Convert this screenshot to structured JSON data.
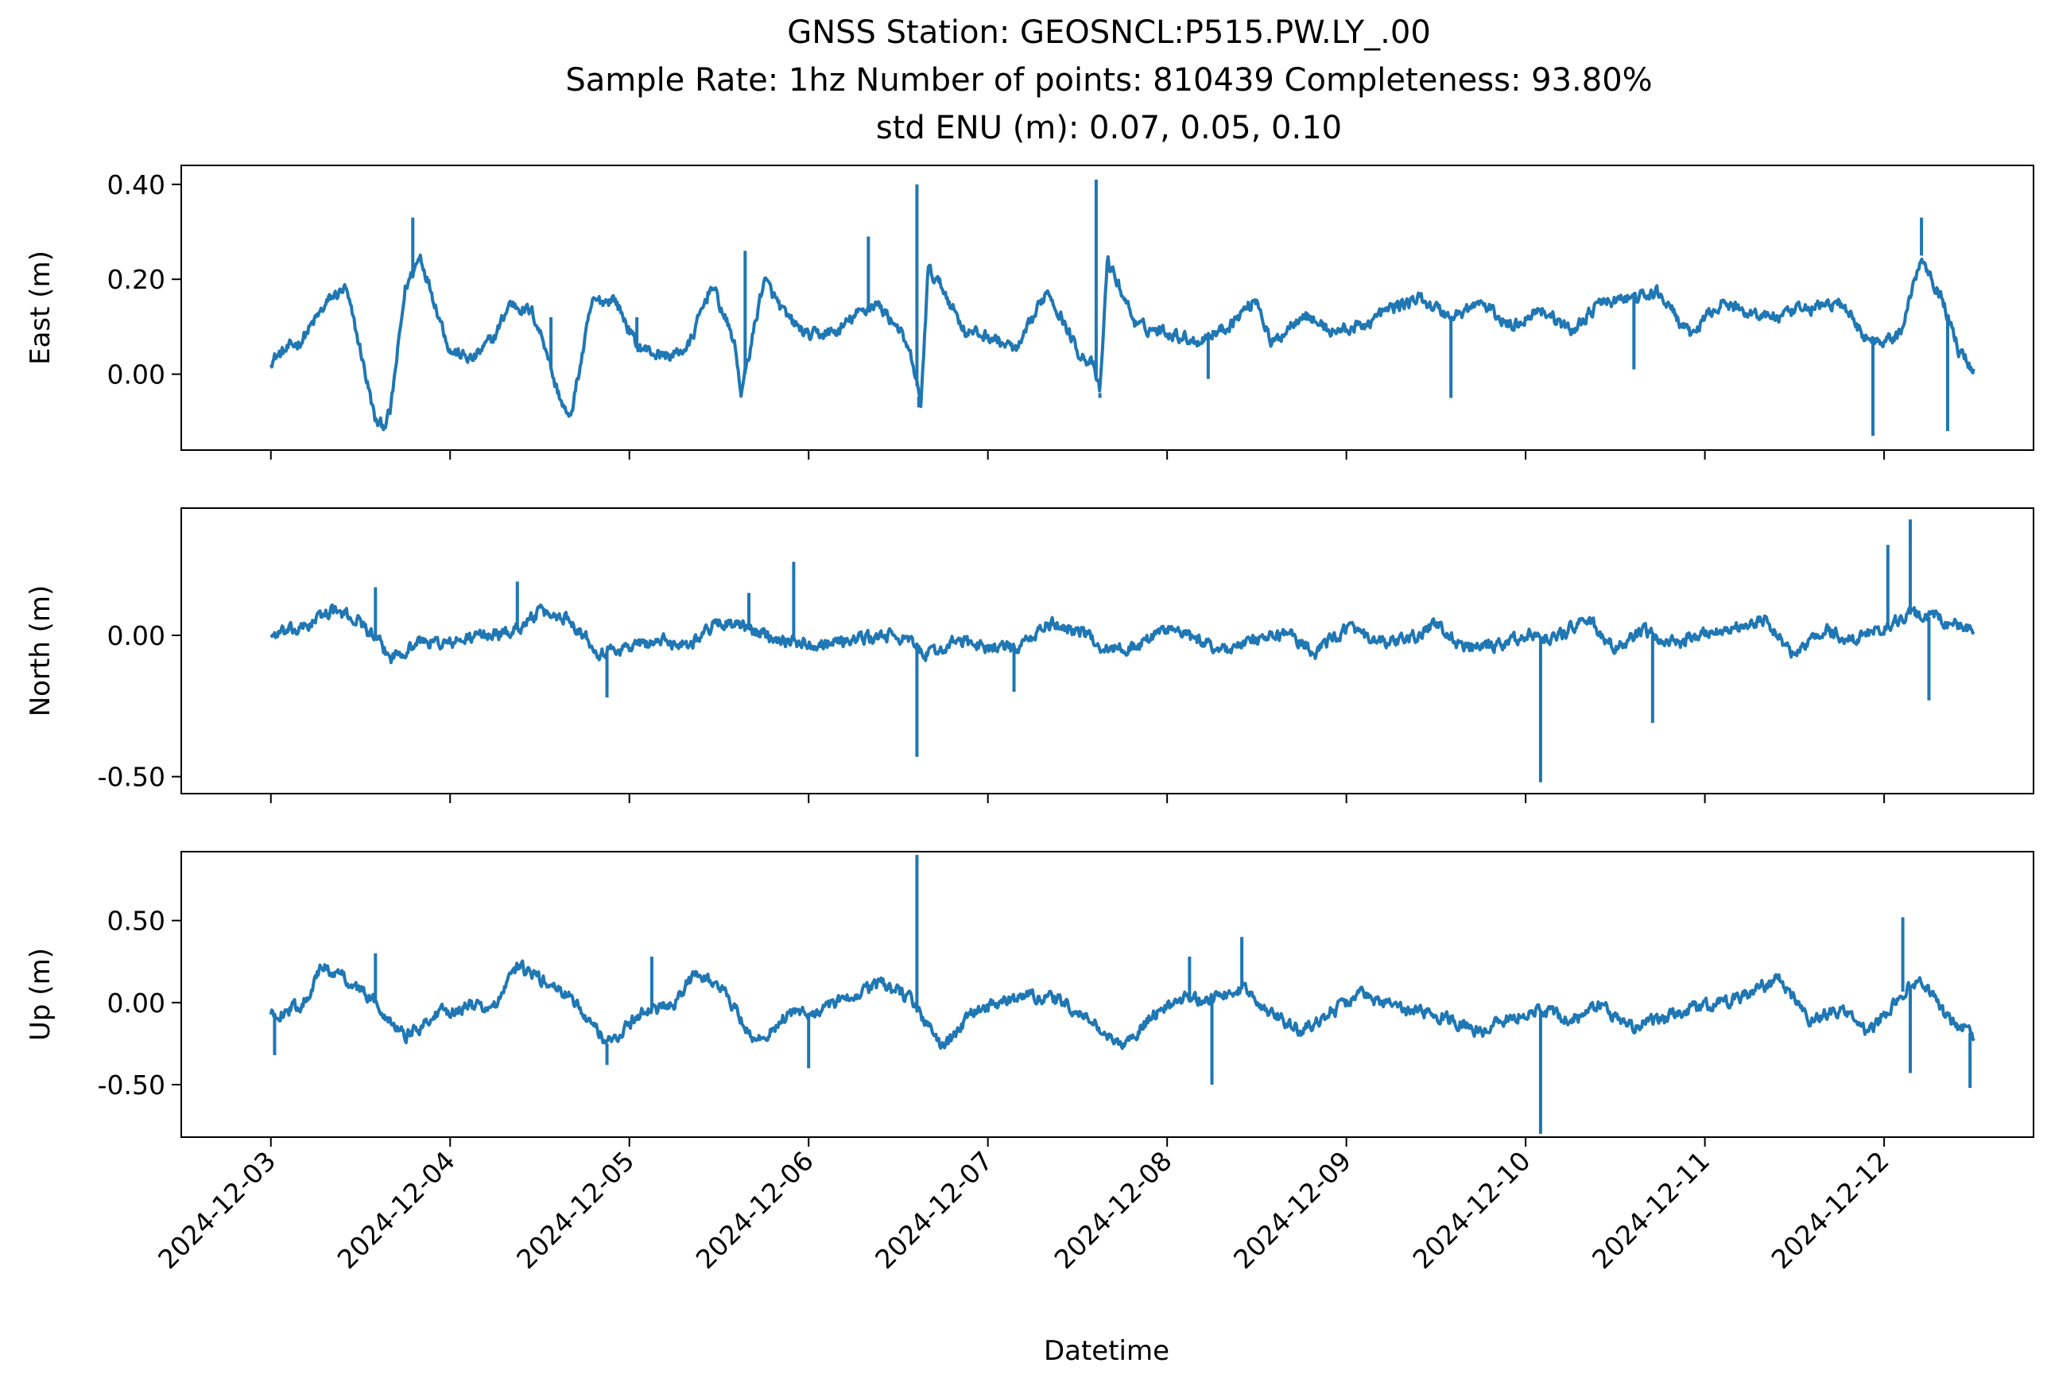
{
  "chart_data": {
    "type": "line",
    "title_lines": [
      "GNSS Station: GEOSNCL:P515.PW.LY_.00",
      "Sample Rate: 1hz   Number of points: 810439    Completeness:  93.80%",
      "std ENU (m):  0.07, 0.05, 0.10"
    ],
    "xlabel": "Datetime",
    "xlim": [
      "2024-12-02 12:00",
      "2024-12-12 20:00"
    ],
    "x_ticks": [
      "2024-12-03",
      "2024-12-04",
      "2024-12-05",
      "2024-12-06",
      "2024-12-07",
      "2024-12-08",
      "2024-12-09",
      "2024-12-10",
      "2024-12-11",
      "2024-12-12"
    ],
    "series_color": "#1f77b4",
    "grid": false,
    "panels": [
      {
        "ylabel": "East (m)",
        "ylim": [
          -0.16,
          0.44
        ],
        "y_ticks": [
          0.4,
          0.2,
          0.0
        ],
        "y_tick_labels": [
          "0.40",
          "0.20",
          "0.00"
        ],
        "x": [
          "2024-12-03 00:00",
          "2024-12-03 04:00",
          "2024-12-03 08:00",
          "2024-12-03 10:00",
          "2024-12-03 12:00",
          "2024-12-03 14:00",
          "2024-12-03 15:00",
          "2024-12-03 16:00",
          "2024-12-03 18:00",
          "2024-12-03 20:00",
          "2024-12-03 22:00",
          "2024-12-04 00:00",
          "2024-12-04 03:00",
          "2024-12-04 06:00",
          "2024-12-04 08:00",
          "2024-12-04 11:00",
          "2024-12-04 13:00",
          "2024-12-04 14:00",
          "2024-12-04 16:00",
          "2024-12-04 19:00",
          "2024-12-04 22:00",
          "2024-12-05 01:00",
          "2024-12-05 04:00",
          "2024-12-05 06:00",
          "2024-12-05 08:00",
          "2024-12-05 11:00",
          "2024-12-05 14:00",
          "2024-12-05 15:00",
          "2024-12-05 18:00",
          "2024-12-05 21:00",
          "2024-12-06 00:00",
          "2024-12-06 04:00",
          "2024-12-06 06:00",
          "2024-12-06 09:00",
          "2024-12-06 12:00",
          "2024-12-06 14:00",
          "2024-12-06 15:00",
          "2024-12-06 16:00",
          "2024-12-06 18:00",
          "2024-12-06 21:00",
          "2024-12-07 00:00",
          "2024-12-07 04:00",
          "2024-12-07 08:00",
          "2024-12-07 12:00",
          "2024-12-07 14:00",
          "2024-12-07 15:00",
          "2024-12-07 16:00",
          "2024-12-07 20:00",
          "2024-12-08 00:00",
          "2024-12-08 04:00",
          "2024-12-08 08:00",
          "2024-12-08 12:00",
          "2024-12-08 14:00",
          "2024-12-08 18:00",
          "2024-12-08 22:00",
          "2024-12-09 02:00",
          "2024-12-09 06:00",
          "2024-12-09 10:00",
          "2024-12-09 14:00",
          "2024-12-09 18:00",
          "2024-12-09 22:00",
          "2024-12-10 02:00",
          "2024-12-10 06:00",
          "2024-12-10 10:00",
          "2024-12-10 14:00",
          "2024-12-10 18:00",
          "2024-12-10 22:00",
          "2024-12-11 02:00",
          "2024-12-11 06:00",
          "2024-12-11 10:00",
          "2024-12-11 14:00",
          "2024-12-11 18:00",
          "2024-12-11 22:00",
          "2024-12-12 02:00",
          "2024-12-12 05:00",
          "2024-12-12 08:00",
          "2024-12-12 10:00",
          "2024-12-12 12:00"
        ],
        "y": [
          0.03,
          0.07,
          0.16,
          0.18,
          0.05,
          -0.1,
          -0.11,
          -0.08,
          0.18,
          0.25,
          0.15,
          0.05,
          0.03,
          0.08,
          0.15,
          0.13,
          0.05,
          -0.02,
          -0.1,
          0.15,
          0.16,
          0.06,
          0.04,
          0.04,
          0.06,
          0.19,
          0.07,
          -0.04,
          0.2,
          0.12,
          0.08,
          0.09,
          0.12,
          0.15,
          0.1,
          0.02,
          -0.07,
          0.22,
          0.18,
          0.09,
          0.08,
          0.05,
          0.18,
          0.05,
          0.02,
          -0.04,
          0.24,
          0.1,
          0.09,
          0.07,
          0.1,
          0.16,
          0.06,
          0.13,
          0.09,
          0.1,
          0.14,
          0.16,
          0.12,
          0.15,
          0.1,
          0.14,
          0.09,
          0.15,
          0.16,
          0.17,
          0.08,
          0.15,
          0.13,
          0.12,
          0.14,
          0.15,
          0.07,
          0.08,
          0.25,
          0.15,
          0.05,
          0.01
        ],
        "spikes": [
          [
            "2024-12-03 19:00",
            0.33
          ],
          [
            "2024-12-04 13:30",
            0.12
          ],
          [
            "2024-12-05 01:00",
            0.12
          ],
          [
            "2024-12-05 15:30",
            0.26
          ],
          [
            "2024-12-06 08:00",
            0.29
          ],
          [
            "2024-12-06 14:30",
            0.4
          ],
          [
            "2024-12-06 14:45",
            -0.07
          ],
          [
            "2024-12-07 14:30",
            0.41
          ],
          [
            "2024-12-07 15:00",
            -0.05
          ],
          [
            "2024-12-08 05:30",
            -0.01
          ],
          [
            "2024-12-09 14:00",
            -0.05
          ],
          [
            "2024-12-10 14:30",
            0.01
          ],
          [
            "2024-12-11 22:30",
            -0.13
          ],
          [
            "2024-12-12 05:00",
            0.33
          ],
          [
            "2024-12-12 08:30",
            -0.12
          ]
        ]
      },
      {
        "ylabel": "North (m)",
        "ylim": [
          -0.56,
          0.45
        ],
        "y_ticks": [
          0.0,
          -0.5
        ],
        "y_tick_labels": [
          "0.00",
          "-0.50"
        ],
        "x": [
          "2024-12-03 00:00",
          "2024-12-03 04:00",
          "2024-12-03 08:00",
          "2024-12-03 12:00",
          "2024-12-03 16:00",
          "2024-12-03 20:00",
          "2024-12-04 00:00",
          "2024-12-04 04:00",
          "2024-12-04 08:00",
          "2024-12-04 12:00",
          "2024-12-04 16:00",
          "2024-12-04 20:00",
          "2024-12-05 00:00",
          "2024-12-05 04:00",
          "2024-12-05 08:00",
          "2024-12-05 12:00",
          "2024-12-05 16:00",
          "2024-12-05 20:00",
          "2024-12-06 00:00",
          "2024-12-06 04:00",
          "2024-12-06 08:00",
          "2024-12-06 12:00",
          "2024-12-06 16:00",
          "2024-12-06 20:00",
          "2024-12-07 00:00",
          "2024-12-07 04:00",
          "2024-12-07 08:00",
          "2024-12-07 12:00",
          "2024-12-07 16:00",
          "2024-12-07 20:00",
          "2024-12-08 00:00",
          "2024-12-08 04:00",
          "2024-12-08 08:00",
          "2024-12-08 12:00",
          "2024-12-08 16:00",
          "2024-12-08 20:00",
          "2024-12-09 00:00",
          "2024-12-09 04:00",
          "2024-12-09 08:00",
          "2024-12-09 12:00",
          "2024-12-09 16:00",
          "2024-12-09 20:00",
          "2024-12-10 00:00",
          "2024-12-10 04:00",
          "2024-12-10 08:00",
          "2024-12-10 12:00",
          "2024-12-10 16:00",
          "2024-12-10 20:00",
          "2024-12-11 00:00",
          "2024-12-11 04:00",
          "2024-12-11 08:00",
          "2024-12-11 12:00",
          "2024-12-11 16:00",
          "2024-12-11 20:00",
          "2024-12-12 00:00",
          "2024-12-12 04:00",
          "2024-12-12 08:00",
          "2024-12-12 12:00"
        ],
        "y": [
          0.0,
          0.02,
          0.09,
          0.05,
          -0.08,
          -0.02,
          -0.03,
          0.0,
          0.01,
          0.08,
          0.06,
          -0.06,
          -0.04,
          -0.02,
          -0.03,
          0.05,
          0.02,
          -0.01,
          -0.03,
          -0.02,
          -0.01,
          0.0,
          -0.07,
          -0.02,
          -0.04,
          -0.05,
          0.04,
          0.02,
          -0.05,
          -0.04,
          0.03,
          -0.02,
          -0.05,
          -0.02,
          0.01,
          -0.06,
          0.03,
          -0.03,
          -0.02,
          0.04,
          -0.05,
          -0.04,
          0.0,
          -0.01,
          0.06,
          -0.05,
          0.01,
          -0.03,
          0.01,
          0.03,
          0.05,
          -0.07,
          0.02,
          -0.02,
          0.03,
          0.08,
          0.05,
          0.02
        ],
        "spikes": [
          [
            "2024-12-03 14:00",
            0.17
          ],
          [
            "2024-12-04 09:00",
            0.19
          ],
          [
            "2024-12-04 21:00",
            -0.22
          ],
          [
            "2024-12-05 16:00",
            0.15
          ],
          [
            "2024-12-05 22:00",
            0.26
          ],
          [
            "2024-12-06 14:30",
            -0.43
          ],
          [
            "2024-12-07 03:30",
            -0.2
          ],
          [
            "2024-12-10 02:00",
            -0.52
          ],
          [
            "2024-12-10 17:00",
            -0.31
          ],
          [
            "2024-12-12 00:30",
            0.32
          ],
          [
            "2024-12-12 03:30",
            0.41
          ],
          [
            "2024-12-12 06:00",
            -0.23
          ]
        ]
      },
      {
        "ylabel": "Up (m)",
        "ylim": [
          -0.82,
          0.92
        ],
        "y_ticks": [
          0.5,
          0.0,
          -0.5
        ],
        "y_tick_labels": [
          "0.50",
          "0.00",
          "-0.50"
        ],
        "x": [
          "2024-12-03 00:00",
          "2024-12-03 04:00",
          "2024-12-03 07:00",
          "2024-12-03 10:00",
          "2024-12-03 14:00",
          "2024-12-03 18:00",
          "2024-12-03 22:00",
          "2024-12-04 02:00",
          "2024-12-04 06:00",
          "2024-12-04 09:00",
          "2024-12-04 13:00",
          "2024-12-04 17:00",
          "2024-12-04 21:00",
          "2024-12-05 02:00",
          "2024-12-05 06:00",
          "2024-12-05 09:00",
          "2024-12-05 13:00",
          "2024-12-05 17:00",
          "2024-12-05 21:00",
          "2024-12-06 02:00",
          "2024-12-06 06:00",
          "2024-12-06 10:00",
          "2024-12-06 14:00",
          "2024-12-06 18:00",
          "2024-12-06 22:00",
          "2024-12-07 02:00",
          "2024-12-07 06:00",
          "2024-12-07 10:00",
          "2024-12-07 14:00",
          "2024-12-07 18:00",
          "2024-12-07 22:00",
          "2024-12-08 02:00",
          "2024-12-08 06:00",
          "2024-12-08 10:00",
          "2024-12-08 14:00",
          "2024-12-08 18:00",
          "2024-12-08 22:00",
          "2024-12-09 02:00",
          "2024-12-09 06:00",
          "2024-12-09 10:00",
          "2024-12-09 14:00",
          "2024-12-09 18:00",
          "2024-12-09 22:00",
          "2024-12-10 02:00",
          "2024-12-10 06:00",
          "2024-12-10 10:00",
          "2024-12-10 14:00",
          "2024-12-10 18:00",
          "2024-12-10 22:00",
          "2024-12-11 02:00",
          "2024-12-11 06:00",
          "2024-12-11 10:00",
          "2024-12-11 14:00",
          "2024-12-11 18:00",
          "2024-12-11 22:00",
          "2024-12-12 02:00",
          "2024-12-12 05:00",
          "2024-12-12 08:00",
          "2024-12-12 12:00"
        ],
        "y": [
          -0.08,
          -0.02,
          0.22,
          0.15,
          0.0,
          -0.2,
          -0.08,
          -0.02,
          -0.03,
          0.22,
          0.12,
          0.0,
          -0.25,
          -0.05,
          -0.02,
          0.2,
          0.05,
          -0.25,
          -0.08,
          -0.05,
          0.05,
          0.12,
          0.0,
          -0.28,
          -0.06,
          0.0,
          0.05,
          0.0,
          -0.12,
          -0.28,
          -0.08,
          0.02,
          0.03,
          0.08,
          -0.05,
          -0.18,
          -0.05,
          0.05,
          -0.02,
          -0.05,
          -0.1,
          -0.18,
          -0.08,
          -0.05,
          -0.1,
          -0.02,
          -0.15,
          -0.1,
          -0.05,
          0.0,
          0.05,
          0.15,
          -0.1,
          -0.05,
          -0.18,
          0.05,
          0.15,
          -0.08,
          -0.2
        ],
        "spikes": [
          [
            "2024-12-03 00:30",
            -0.32
          ],
          [
            "2024-12-03 14:00",
            0.3
          ],
          [
            "2024-12-04 21:00",
            -0.38
          ],
          [
            "2024-12-05 03:00",
            0.28
          ],
          [
            "2024-12-06 00:00",
            -0.4
          ],
          [
            "2024-12-06 14:30",
            0.9
          ],
          [
            "2024-12-08 03:00",
            0.28
          ],
          [
            "2024-12-08 06:00",
            -0.5
          ],
          [
            "2024-12-08 10:00",
            0.4
          ],
          [
            "2024-12-10 02:00",
            -0.8
          ],
          [
            "2024-12-12 02:30",
            0.52
          ],
          [
            "2024-12-12 03:30",
            -0.43
          ],
          [
            "2024-12-12 11:30",
            -0.52
          ]
        ]
      }
    ]
  }
}
